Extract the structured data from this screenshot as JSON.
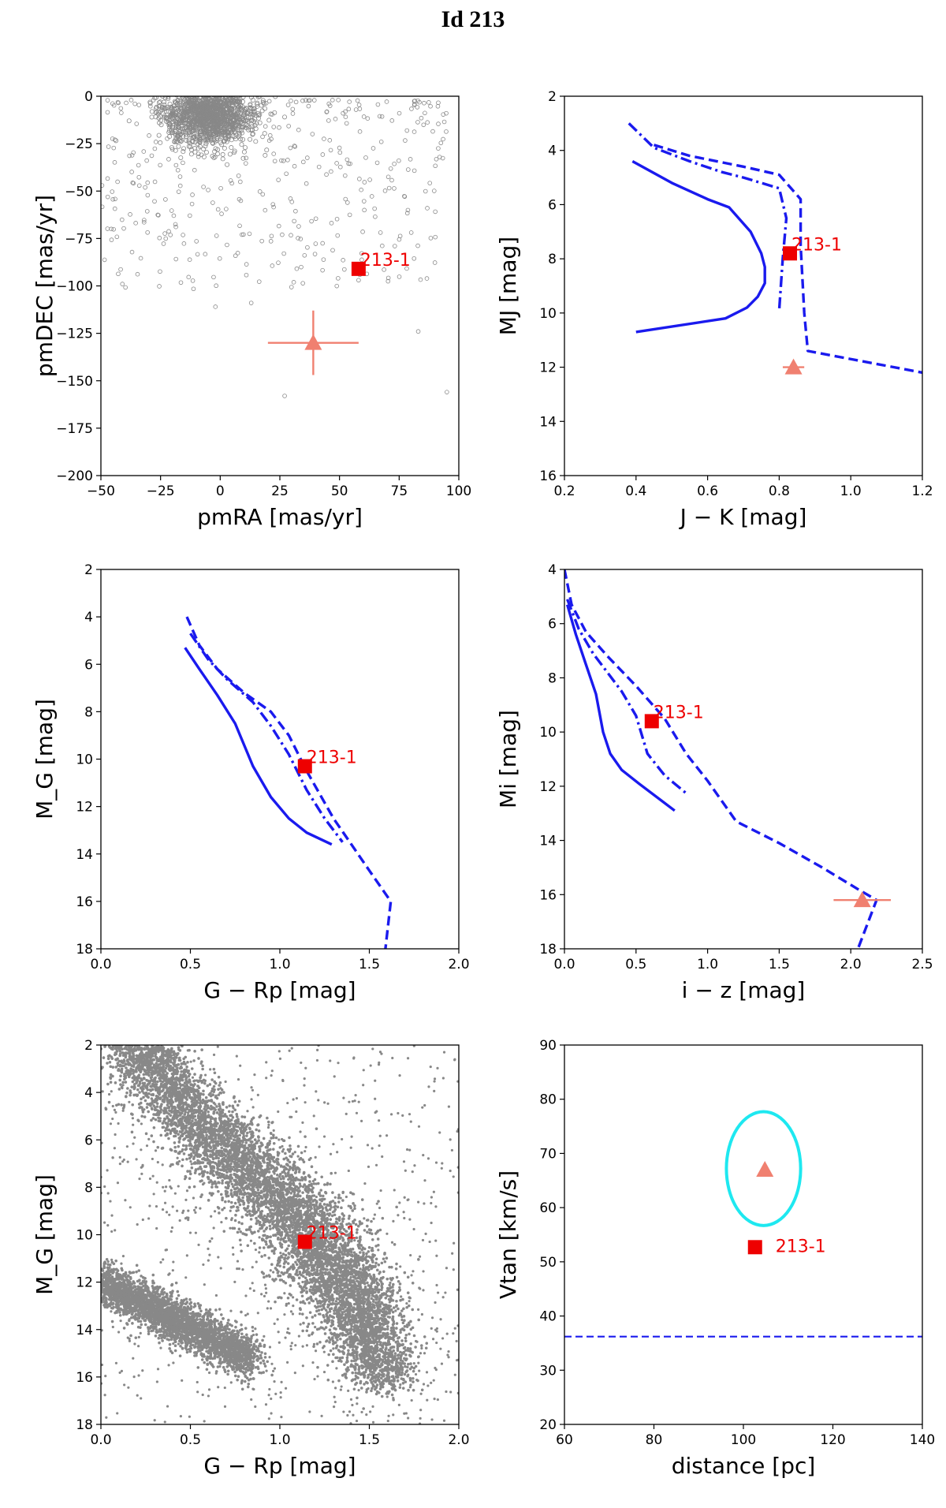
{
  "title": "Id 213",
  "colors": {
    "model": "#1a1aee",
    "star": "#ee0000",
    "companion": "#f08070",
    "background_points": "#888888",
    "ellipse": "#1ee8f0"
  },
  "chart_data": [
    {
      "id": "pm",
      "type": "scatter",
      "xlabel": "pmRA [mas/yr]",
      "ylabel": "pmDEC [mas/yr]",
      "xlim": [
        -50,
        100
      ],
      "ylim": [
        -200,
        0
      ],
      "xticks": [
        -50,
        -25,
        0,
        25,
        50,
        75,
        100
      ],
      "yticks": [
        0,
        -25,
        -50,
        -75,
        -100,
        -125,
        -150,
        -175,
        -200
      ],
      "ytick_labels": [
        "0",
        "−25",
        "−50",
        "−75",
        "−100",
        "−125",
        "−150",
        "−175",
        "−200"
      ],
      "xtick_labels": [
        "−50",
        "−25",
        "0",
        "25",
        "50",
        "75",
        "100"
      ],
      "background_field": "open circles, dense cluster near (-5, -10), sparse scatter to pmRA 95, pmDEC -160",
      "star": {
        "label": "213-1",
        "x": 58,
        "y": -91
      },
      "companion": {
        "x": 39,
        "y": -130,
        "xerr": 19,
        "yerr": 17
      }
    },
    {
      "id": "jk",
      "type": "line",
      "xlabel": "J − K [mag]",
      "ylabel": "MJ [mag]",
      "xlim": [
        0.2,
        1.2
      ],
      "ylim": [
        16,
        2
      ],
      "xticks": [
        0.2,
        0.4,
        0.6,
        0.8,
        1.0,
        1.2
      ],
      "xtick_labels": [
        "0.2",
        "0.4",
        "0.6",
        "0.8",
        "1.0",
        "1.2"
      ],
      "yticks": [
        2,
        4,
        6,
        8,
        10,
        12,
        14,
        16
      ],
      "ytick_labels": [
        "2",
        "4",
        "6",
        "8",
        "10",
        "12",
        "14",
        "16"
      ],
      "series": [
        {
          "name": "solid",
          "style": "solid",
          "x": [
            0.39,
            0.5,
            0.6,
            0.66,
            0.72,
            0.75,
            0.76,
            0.76,
            0.74,
            0.71,
            0.65,
            0.4
          ],
          "y": [
            4.4,
            5.2,
            5.8,
            6.1,
            7.0,
            7.8,
            8.3,
            8.9,
            9.4,
            9.8,
            10.2,
            10.7
          ]
        },
        {
          "name": "dashdot",
          "style": "dashdot",
          "x": [
            0.38,
            0.45,
            0.55,
            0.64,
            0.7,
            0.8,
            0.82,
            0.81,
            0.8
          ],
          "y": [
            3.0,
            3.9,
            4.4,
            4.8,
            5.0,
            5.4,
            6.5,
            8.0,
            9.9
          ]
        },
        {
          "name": "dashed",
          "style": "dashed",
          "x": [
            0.45,
            0.55,
            0.7,
            0.8,
            0.86,
            0.86,
            0.87,
            0.88,
            1.2
          ],
          "y": [
            3.8,
            4.2,
            4.6,
            4.9,
            5.8,
            7.5,
            10.0,
            11.4,
            12.2
          ]
        }
      ],
      "star": {
        "label": "213-1",
        "x": 0.83,
        "y": 7.8
      },
      "companion": {
        "x": 0.84,
        "y": 12.0,
        "xerr": 0.03,
        "yerr": 0
      }
    },
    {
      "id": "grp",
      "type": "line",
      "xlabel": "G − Rp [mag]",
      "ylabel": "M_G [mag]",
      "xlim": [
        0.0,
        2.0
      ],
      "ylim": [
        18,
        2
      ],
      "xticks": [
        0.0,
        0.5,
        1.0,
        1.5,
        2.0
      ],
      "xtick_labels": [
        "0.0",
        "0.5",
        "1.0",
        "1.5",
        "2.0"
      ],
      "yticks": [
        2,
        4,
        6,
        8,
        10,
        12,
        14,
        16,
        18
      ],
      "ytick_labels": [
        "2",
        "4",
        "6",
        "8",
        "10",
        "12",
        "14",
        "16",
        "18"
      ],
      "series": [
        {
          "name": "solid",
          "style": "solid",
          "x": [
            0.47,
            0.55,
            0.65,
            0.75,
            0.85,
            0.95,
            1.05,
            1.15,
            1.29
          ],
          "y": [
            5.3,
            6.2,
            7.3,
            8.5,
            10.3,
            11.6,
            12.5,
            13.1,
            13.6
          ]
        },
        {
          "name": "dashdot",
          "style": "dashdot",
          "x": [
            0.5,
            0.6,
            0.7,
            0.85,
            0.95,
            1.05,
            1.15,
            1.25,
            1.35
          ],
          "y": [
            4.7,
            5.8,
            6.6,
            7.6,
            8.6,
            9.8,
            11.3,
            12.5,
            13.5
          ]
        },
        {
          "name": "dashed",
          "style": "dashed",
          "x": [
            0.48,
            0.55,
            0.65,
            0.8,
            0.95,
            1.05,
            1.15,
            1.3,
            1.5,
            1.62,
            1.59
          ],
          "y": [
            4.0,
            5.2,
            6.2,
            7.2,
            8.0,
            9.0,
            10.5,
            12.5,
            14.7,
            16.0,
            18.0
          ]
        }
      ],
      "star": {
        "label": "213-1",
        "x": 1.14,
        "y": 10.3
      }
    },
    {
      "id": "iz",
      "type": "line",
      "xlabel": "i − z [mag]",
      "ylabel": "Mi [mag]",
      "xlim": [
        0.0,
        2.5
      ],
      "ylim": [
        18,
        4
      ],
      "xticks": [
        0.0,
        0.5,
        1.0,
        1.5,
        2.0,
        2.5
      ],
      "xtick_labels": [
        "0.0",
        "0.5",
        "1.0",
        "1.5",
        "2.0",
        "2.5"
      ],
      "yticks": [
        4,
        6,
        8,
        10,
        12,
        14,
        16,
        18
      ],
      "ytick_labels": [
        "4",
        "6",
        "8",
        "10",
        "12",
        "14",
        "16",
        "18"
      ],
      "series": [
        {
          "name": "solid",
          "style": "solid",
          "x": [
            0.02,
            0.08,
            0.15,
            0.22,
            0.27,
            0.32,
            0.4,
            0.52,
            0.77
          ],
          "y": [
            5.3,
            6.4,
            7.5,
            8.6,
            10.0,
            10.8,
            11.4,
            11.9,
            12.9
          ]
        },
        {
          "name": "dashdot",
          "style": "dashdot",
          "x": [
            0.02,
            0.1,
            0.2,
            0.3,
            0.4,
            0.5,
            0.58,
            0.7,
            0.86
          ],
          "y": [
            5.1,
            6.2,
            7.1,
            7.8,
            8.5,
            9.4,
            10.8,
            11.6,
            12.3
          ]
        },
        {
          "name": "dashed",
          "style": "dashed",
          "x": [
            0.0,
            0.05,
            0.15,
            0.3,
            0.5,
            0.7,
            0.85,
            1.0,
            1.2,
            1.5,
            1.8,
            2.05,
            2.18,
            2.05
          ],
          "y": [
            4.0,
            5.3,
            6.3,
            7.2,
            8.3,
            9.5,
            10.8,
            11.8,
            13.3,
            14.1,
            15.0,
            15.8,
            16.2,
            18.0
          ]
        }
      ],
      "star": {
        "label": "213-1",
        "x": 0.61,
        "y": 9.6
      },
      "companion": {
        "x": 2.08,
        "y": 16.2,
        "xerr": 0.2,
        "yerr": 0
      }
    },
    {
      "id": "cmd",
      "type": "scatter",
      "xlabel": "G − Rp [mag]",
      "ylabel": "M_G [mag]",
      "xlim": [
        0.0,
        2.0
      ],
      "ylim": [
        18,
        2
      ],
      "xticks": [
        0.0,
        0.5,
        1.0,
        1.5,
        2.0
      ],
      "xtick_labels": [
        "0.0",
        "0.5",
        "1.0",
        "1.5",
        "2.0"
      ],
      "yticks": [
        2,
        4,
        6,
        8,
        10,
        12,
        14,
        16,
        18
      ],
      "ytick_labels": [
        "2",
        "4",
        "6",
        "8",
        "10",
        "12",
        "14",
        "16",
        "18"
      ],
      "background_field": "Gaia main sequence band from (0.2, 2) to (1.6, 16.5) and white-dwarf band from (0.0, 12) to (0.85, 15.5), plus sparse field points",
      "star": {
        "label": "213-1",
        "x": 1.14,
        "y": 10.3
      }
    },
    {
      "id": "vtan",
      "type": "scatter",
      "xlabel": "distance [pc]",
      "ylabel": "Vtan [km/s]",
      "xlim": [
        60,
        140
      ],
      "ylim": [
        20,
        90
      ],
      "xticks": [
        60,
        80,
        100,
        120,
        140
      ],
      "xtick_labels": [
        "60",
        "80",
        "100",
        "120",
        "140"
      ],
      "yticks": [
        20,
        30,
        40,
        50,
        60,
        70,
        80,
        90
      ],
      "ytick_labels": [
        "20",
        "30",
        "40",
        "50",
        "60",
        "70",
        "80",
        "90"
      ],
      "hline": 36.2,
      "star": {
        "label": "213-1",
        "x": 102.6,
        "y": 52.7
      },
      "companion": {
        "x": 104.8,
        "y": 67.0
      },
      "ellipse": {
        "cx": 104.5,
        "cy": 67.2,
        "rx": 8.3,
        "ry": 10.5
      }
    }
  ]
}
